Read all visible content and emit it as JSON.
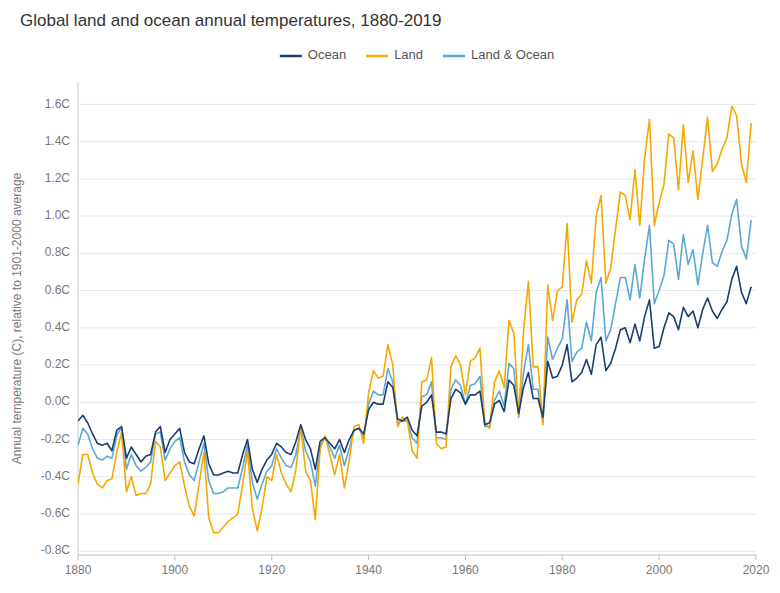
{
  "chart_data": {
    "type": "line",
    "title": "Global land and ocean annual temperatures, 1880-2019",
    "y_label": "Annual temperature (C), relative to 1901-2000 average",
    "x": [
      1880,
      1881,
      1882,
      1883,
      1884,
      1885,
      1886,
      1887,
      1888,
      1889,
      1890,
      1891,
      1892,
      1893,
      1894,
      1895,
      1896,
      1897,
      1898,
      1899,
      1900,
      1901,
      1902,
      1903,
      1904,
      1905,
      1906,
      1907,
      1908,
      1909,
      1910,
      1911,
      1912,
      1913,
      1914,
      1915,
      1916,
      1917,
      1918,
      1919,
      1920,
      1921,
      1922,
      1923,
      1924,
      1925,
      1926,
      1927,
      1928,
      1929,
      1930,
      1931,
      1932,
      1933,
      1934,
      1935,
      1936,
      1937,
      1938,
      1939,
      1940,
      1941,
      1942,
      1943,
      1944,
      1945,
      1946,
      1947,
      1948,
      1949,
      1950,
      1951,
      1952,
      1953,
      1954,
      1955,
      1956,
      1957,
      1958,
      1959,
      1960,
      1961,
      1962,
      1963,
      1964,
      1965,
      1966,
      1967,
      1968,
      1969,
      1970,
      1971,
      1972,
      1973,
      1974,
      1975,
      1976,
      1977,
      1978,
      1979,
      1980,
      1981,
      1982,
      1983,
      1984,
      1985,
      1986,
      1987,
      1988,
      1989,
      1990,
      1991,
      1992,
      1993,
      1994,
      1995,
      1996,
      1997,
      1998,
      1999,
      2000,
      2001,
      2002,
      2003,
      2004,
      2005,
      2006,
      2007,
      2008,
      2009,
      2010,
      2011,
      2012,
      2013,
      2014,
      2015,
      2016,
      2017,
      2018,
      2019
    ],
    "series": [
      {
        "name": "Ocean",
        "color": "#1c3d6e",
        "values": [
          -0.1,
          -0.07,
          -0.11,
          -0.17,
          -0.22,
          -0.23,
          -0.22,
          -0.26,
          -0.15,
          -0.13,
          -0.3,
          -0.24,
          -0.28,
          -0.32,
          -0.29,
          -0.28,
          -0.16,
          -0.13,
          -0.27,
          -0.2,
          -0.17,
          -0.14,
          -0.27,
          -0.32,
          -0.33,
          -0.25,
          -0.18,
          -0.33,
          -0.39,
          -0.39,
          -0.38,
          -0.37,
          -0.38,
          -0.38,
          -0.28,
          -0.2,
          -0.36,
          -0.43,
          -0.36,
          -0.31,
          -0.28,
          -0.22,
          -0.24,
          -0.27,
          -0.28,
          -0.21,
          -0.12,
          -0.2,
          -0.25,
          -0.36,
          -0.21,
          -0.19,
          -0.22,
          -0.25,
          -0.2,
          -0.27,
          -0.2,
          -0.15,
          -0.14,
          -0.17,
          -0.04,
          0.0,
          -0.01,
          -0.01,
          0.11,
          0.08,
          -0.09,
          -0.1,
          -0.08,
          -0.15,
          -0.18,
          -0.02,
          0.0,
          0.04,
          -0.16,
          -0.16,
          -0.17,
          0.02,
          0.07,
          0.05,
          -0.01,
          0.04,
          0.04,
          0.06,
          -0.12,
          -0.11,
          -0.01,
          0.01,
          -0.05,
          0.12,
          0.09,
          -0.06,
          0.08,
          0.16,
          0.02,
          0.02,
          -0.08,
          0.22,
          0.13,
          0.14,
          0.2,
          0.31,
          0.11,
          0.13,
          0.16,
          0.23,
          0.15,
          0.31,
          0.35,
          0.17,
          0.21,
          0.29,
          0.39,
          0.4,
          0.32,
          0.42,
          0.33,
          0.46,
          0.55,
          0.29,
          0.3,
          0.4,
          0.48,
          0.46,
          0.39,
          0.51,
          0.46,
          0.49,
          0.4,
          0.5,
          0.56,
          0.49,
          0.45,
          0.5,
          0.54,
          0.66,
          0.73,
          0.59,
          0.53,
          0.62
        ]
      },
      {
        "name": "Land",
        "color": "#f5a800",
        "values": [
          -0.44,
          -0.28,
          -0.28,
          -0.38,
          -0.44,
          -0.46,
          -0.42,
          -0.41,
          -0.27,
          -0.16,
          -0.48,
          -0.4,
          -0.5,
          -0.49,
          -0.49,
          -0.44,
          -0.21,
          -0.24,
          -0.42,
          -0.38,
          -0.34,
          -0.32,
          -0.45,
          -0.56,
          -0.61,
          -0.44,
          -0.27,
          -0.62,
          -0.7,
          -0.7,
          -0.67,
          -0.64,
          -0.62,
          -0.6,
          -0.44,
          -0.26,
          -0.57,
          -0.69,
          -0.57,
          -0.4,
          -0.42,
          -0.28,
          -0.38,
          -0.44,
          -0.48,
          -0.36,
          -0.13,
          -0.37,
          -0.42,
          -0.63,
          -0.25,
          -0.18,
          -0.28,
          -0.39,
          -0.28,
          -0.46,
          -0.31,
          -0.13,
          -0.12,
          -0.22,
          0.05,
          0.17,
          0.13,
          0.14,
          0.31,
          0.2,
          -0.13,
          -0.08,
          -0.1,
          -0.26,
          -0.3,
          0.11,
          0.12,
          0.24,
          -0.22,
          -0.25,
          -0.24,
          0.19,
          0.25,
          0.2,
          0.04,
          0.22,
          0.24,
          0.29,
          -0.11,
          -0.14,
          0.11,
          0.17,
          0.08,
          0.44,
          0.37,
          -0.07,
          0.38,
          0.65,
          0.19,
          0.19,
          -0.12,
          0.63,
          0.44,
          0.6,
          0.62,
          0.96,
          0.43,
          0.55,
          0.58,
          0.76,
          0.64,
          1.0,
          1.11,
          0.64,
          0.72,
          0.93,
          1.13,
          1.11,
          0.98,
          1.25,
          0.95,
          1.31,
          1.52,
          0.95,
          1.07,
          1.17,
          1.44,
          1.42,
          1.14,
          1.49,
          1.18,
          1.35,
          1.09,
          1.31,
          1.53,
          1.24,
          1.28,
          1.36,
          1.42,
          1.59,
          1.54,
          1.28,
          1.18,
          1.5
        ]
      },
      {
        "name": "Land & Ocean",
        "color": "#5ba8d4",
        "values": [
          -0.23,
          -0.14,
          -0.17,
          -0.25,
          -0.3,
          -0.31,
          -0.29,
          -0.3,
          -0.18,
          -0.13,
          -0.36,
          -0.28,
          -0.34,
          -0.37,
          -0.35,
          -0.32,
          -0.17,
          -0.16,
          -0.31,
          -0.25,
          -0.21,
          -0.19,
          -0.32,
          -0.39,
          -0.42,
          -0.32,
          -0.22,
          -0.42,
          -0.49,
          -0.49,
          -0.48,
          -0.46,
          -0.46,
          -0.46,
          -0.35,
          -0.23,
          -0.43,
          -0.52,
          -0.44,
          -0.37,
          -0.34,
          -0.25,
          -0.3,
          -0.34,
          -0.35,
          -0.28,
          -0.14,
          -0.26,
          -0.32,
          -0.45,
          -0.24,
          -0.19,
          -0.24,
          -0.3,
          -0.23,
          -0.34,
          -0.25,
          -0.15,
          -0.14,
          -0.19,
          -0.01,
          0.06,
          0.04,
          0.04,
          0.18,
          0.11,
          -0.11,
          -0.1,
          -0.1,
          -0.19,
          -0.22,
          0.03,
          0.04,
          0.11,
          -0.19,
          -0.19,
          -0.2,
          0.07,
          0.12,
          0.09,
          -0.01,
          0.09,
          0.1,
          0.14,
          -0.13,
          -0.13,
          0.01,
          0.06,
          -0.02,
          0.21,
          0.18,
          -0.08,
          0.16,
          0.31,
          0.07,
          0.07,
          -0.11,
          0.35,
          0.23,
          0.29,
          0.34,
          0.55,
          0.22,
          0.27,
          0.29,
          0.43,
          0.33,
          0.59,
          0.67,
          0.33,
          0.39,
          0.53,
          0.67,
          0.67,
          0.55,
          0.74,
          0.56,
          0.77,
          0.95,
          0.53,
          0.6,
          0.68,
          0.87,
          0.85,
          0.66,
          0.9,
          0.74,
          0.82,
          0.63,
          0.8,
          0.95,
          0.75,
          0.73,
          0.81,
          0.87,
          1.01,
          1.09,
          0.84,
          0.77,
          0.98
        ]
      }
    ],
    "xlim": [
      1880,
      2020
    ],
    "xticks": [
      1880,
      1900,
      1920,
      1940,
      1960,
      1980,
      2000,
      2020
    ],
    "ylim": [
      -0.82,
      1.72
    ],
    "yticks": [
      {
        "value": -0.8,
        "label": "-0.8C"
      },
      {
        "value": -0.6,
        "label": "-0.6C"
      },
      {
        "value": -0.4,
        "label": "-0.4C"
      },
      {
        "value": -0.2,
        "label": "-0.2C"
      },
      {
        "value": 0.0,
        "label": "0.0C"
      },
      {
        "value": 0.2,
        "label": "0.2C"
      },
      {
        "value": 0.4,
        "label": "0.4C"
      },
      {
        "value": 0.6,
        "label": "0.6C"
      },
      {
        "value": 0.8,
        "label": "0.8C"
      },
      {
        "value": 1.0,
        "label": "1.0C"
      },
      {
        "value": 1.2,
        "label": "1.2C"
      },
      {
        "value": 1.4,
        "label": "1.4C"
      },
      {
        "value": 1.6,
        "label": "1.6C"
      }
    ],
    "grid": true,
    "legend": "top"
  }
}
